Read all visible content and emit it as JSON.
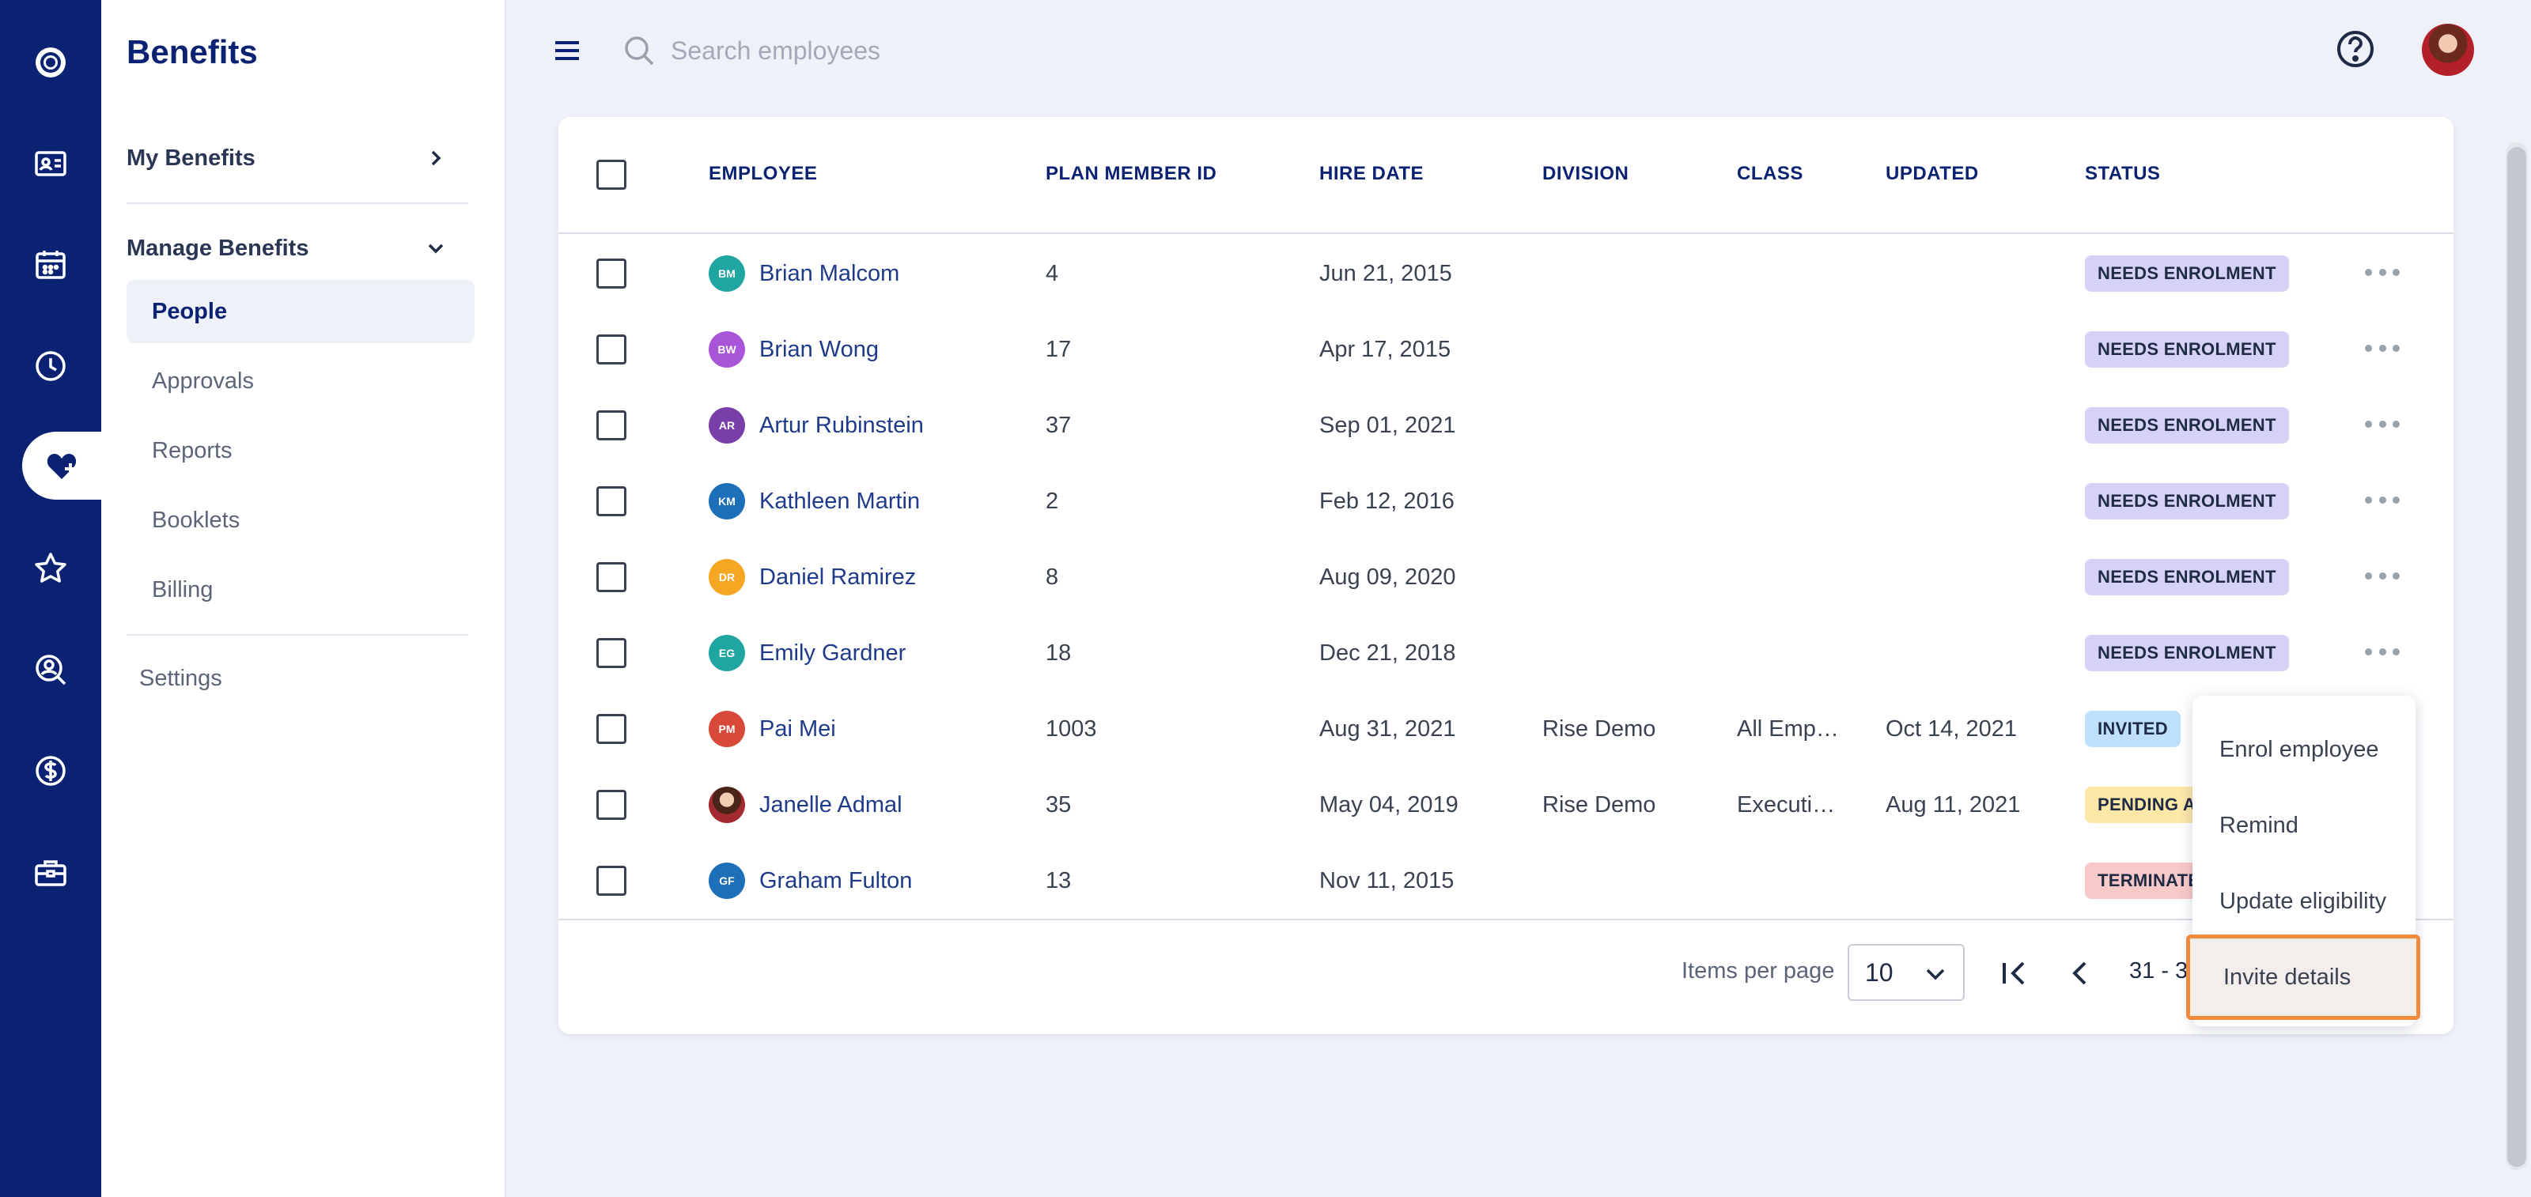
{
  "app": {
    "title": "Benefits"
  },
  "sidebar": {
    "groups": [
      {
        "label": "My Benefits"
      },
      {
        "label": "Manage Benefits"
      }
    ],
    "items": [
      {
        "label": "People"
      },
      {
        "label": "Approvals"
      },
      {
        "label": "Reports"
      },
      {
        "label": "Booklets"
      },
      {
        "label": "Billing"
      }
    ],
    "settings": "Settings"
  },
  "search": {
    "placeholder": "Search employees"
  },
  "table": {
    "columns": [
      "EMPLOYEE",
      "PLAN MEMBER ID",
      "HIRE DATE",
      "DIVISION",
      "CLASS",
      "UPDATED",
      "STATUS"
    ],
    "rows": [
      {
        "initials": "BM",
        "avatar_color": "#1fa6a0",
        "name": "Brian Malcom",
        "id": "4",
        "hire": "Jun 21, 2015",
        "division": "",
        "class": "",
        "updated": "",
        "status": "NEEDS ENROLMENT",
        "status_color": "#d6d2f6"
      },
      {
        "initials": "BW",
        "avatar_color": "#a855d8",
        "name": "Brian Wong",
        "id": "17",
        "hire": "Apr 17, 2015",
        "division": "",
        "class": "",
        "updated": "",
        "status": "NEEDS ENROLMENT",
        "status_color": "#d6d2f6"
      },
      {
        "initials": "AR",
        "avatar_color": "#7a3ea8",
        "name": "Artur Rubinstein",
        "id": "37",
        "hire": "Sep 01, 2021",
        "division": "",
        "class": "",
        "updated": "",
        "status": "NEEDS ENROLMENT",
        "status_color": "#d6d2f6"
      },
      {
        "initials": "KM",
        "avatar_color": "#1d6fb8",
        "name": "Kathleen Martin",
        "id": "2",
        "hire": "Feb 12, 2016",
        "division": "",
        "class": "",
        "updated": "",
        "status": "NEEDS ENROLMENT",
        "status_color": "#d6d2f6"
      },
      {
        "initials": "DR",
        "avatar_color": "#f5a623",
        "name": "Daniel Ramirez",
        "id": "8",
        "hire": "Aug 09, 2020",
        "division": "",
        "class": "",
        "updated": "",
        "status": "NEEDS ENROLMENT",
        "status_color": "#d6d2f6"
      },
      {
        "initials": "EG",
        "avatar_color": "#1fa6a0",
        "name": "Emily Gardner",
        "id": "18",
        "hire": "Dec 21, 2018",
        "division": "",
        "class": "",
        "updated": "",
        "status": "NEEDS ENROLMENT",
        "status_color": "#d6d2f6"
      },
      {
        "initials": "PM",
        "avatar_color": "#d9493a",
        "name": "Pai Mei",
        "id": "1003",
        "hire": "Aug 31, 2021",
        "division": "Rise Demo",
        "class": "All Emp…",
        "updated": "Oct 14, 2021",
        "status": "INVITED",
        "status_color": "#bfe0fb"
      },
      {
        "initials": "",
        "avatar_color": "",
        "name": "Janelle Admal",
        "id": "35",
        "hire": "May 04, 2019",
        "division": "Rise Demo",
        "class": "Executi…",
        "updated": "Aug 11, 2021",
        "status": "PENDING A",
        "status_color": "#fde8a8"
      },
      {
        "initials": "GF",
        "avatar_color": "#1d6fb8",
        "name": "Graham Fulton",
        "id": "13",
        "hire": "Nov 11, 2015",
        "division": "",
        "class": "",
        "updated": "",
        "status": "TERMINATE",
        "status_color": "#f8c9c9"
      }
    ]
  },
  "pagination": {
    "items_per_page_label": "Items per page",
    "items_per_page_value": "10",
    "range_text": "31 - 3"
  },
  "context_menu": {
    "items": [
      "Enrol employee",
      "Remind",
      "Update eligibility",
      "Invite details"
    ]
  }
}
